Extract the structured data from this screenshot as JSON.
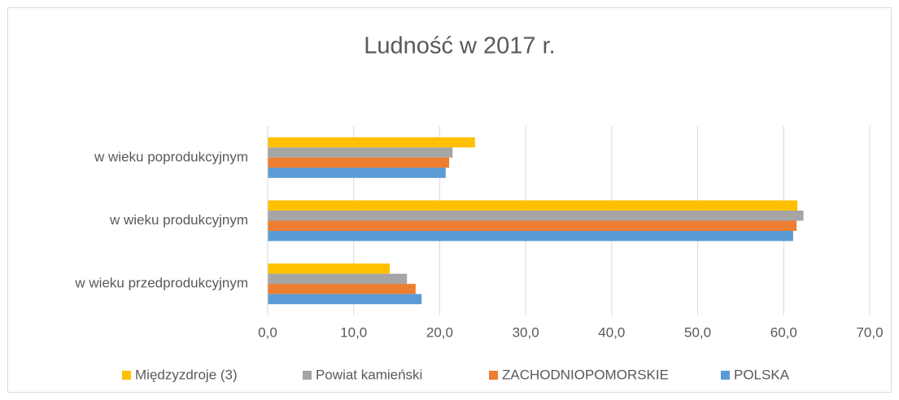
{
  "chart_data": {
    "type": "bar",
    "orientation": "horizontal",
    "title": "Ludność  w 2017  r.",
    "categories": [
      "w wieku przedprodukcyjnym",
      "w wieku produkcyjnym",
      "w wieku poprodukcyjnym"
    ],
    "series": [
      {
        "name": "Międzyzdroje (3)",
        "color": "#ffc000",
        "values": [
          14.2,
          61.6,
          24.1
        ]
      },
      {
        "name": "Powiat kamieński",
        "color": "#a5a5a5",
        "values": [
          16.2,
          62.3,
          21.5
        ]
      },
      {
        "name": "ZACHODNIOPOMORSKIE",
        "color": "#ed7d31",
        "values": [
          17.2,
          61.5,
          21.1
        ]
      },
      {
        "name": "POLSKA",
        "color": "#5b9bd5",
        "values": [
          17.9,
          61.1,
          20.7
        ]
      }
    ],
    "xlim": [
      0,
      70
    ],
    "xticks": [
      {
        "value": 0,
        "label": "0,0"
      },
      {
        "value": 10,
        "label": "10,0"
      },
      {
        "value": 20,
        "label": "20,0"
      },
      {
        "value": 30,
        "label": "30,0"
      },
      {
        "value": 40,
        "label": "40,0"
      },
      {
        "value": 50,
        "label": "50,0"
      },
      {
        "value": 60,
        "label": "60,0"
      },
      {
        "value": 70,
        "label": "70,0"
      }
    ],
    "grid": true,
    "legend": "bottom"
  }
}
